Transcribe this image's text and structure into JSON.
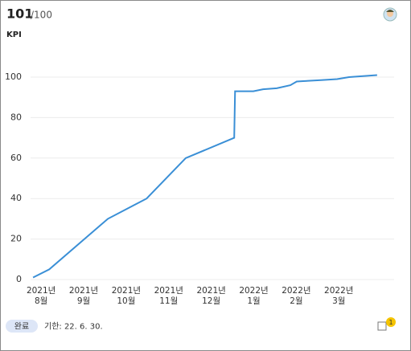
{
  "header": {
    "score": "101",
    "total": "/100"
  },
  "chart_data": {
    "type": "line",
    "title": "KPI",
    "x": [
      -0.19,
      0.19,
      1.57,
      2.48,
      3.4,
      4.54,
      4.56,
      4.99,
      5.22,
      5.54,
      5.86,
      6.01,
      6.16,
      6.58,
      6.96,
      7.24,
      7.9
    ],
    "values": [
      1,
      5,
      30,
      40,
      60,
      70,
      93,
      93,
      94,
      94.5,
      96,
      97.8,
      98,
      98.5,
      99,
      100,
      101
    ],
    "color": "#3a8fd6",
    "xlim": [
      -0.4,
      8.3
    ],
    "xticks": [
      {
        "value": 0,
        "label": "2021년\n8월"
      },
      {
        "value": 1,
        "label": "2021년\n9월"
      },
      {
        "value": 2,
        "label": "2021년\n10월"
      },
      {
        "value": 3,
        "label": "2021년\n11월"
      },
      {
        "value": 4,
        "label": "2021년\n12월"
      },
      {
        "value": 5,
        "label": "2022년\n1월"
      },
      {
        "value": 6,
        "label": "2022년\n2월"
      },
      {
        "value": 7,
        "label": "2022년\n3월"
      }
    ],
    "ylim": [
      0,
      100
    ],
    "yticks": [
      0,
      20,
      40,
      60,
      80,
      100
    ],
    "grid": true
  },
  "footer": {
    "status": "완료",
    "due": "기한: 22. 6. 30.",
    "badge": "1"
  }
}
